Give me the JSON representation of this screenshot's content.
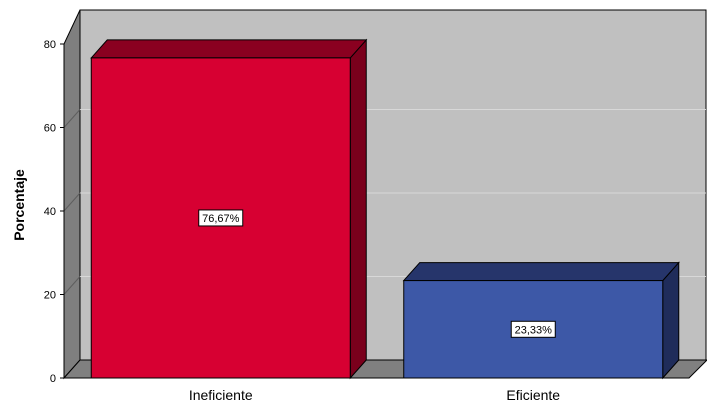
{
  "chart_data": {
    "type": "bar",
    "categories": [
      "Ineficiente",
      "Eficiente"
    ],
    "values": [
      76.67,
      23.33
    ],
    "data_labels": [
      "76,67%",
      "23,33%"
    ],
    "ylabel": "Porcentaje",
    "xlabel": "",
    "ylim": [
      0,
      80
    ],
    "yticks": [
      "0",
      "20",
      "40",
      "60",
      "80"
    ],
    "grid": true,
    "three_d": true,
    "colors": {
      "bar_fronts": [
        "#d70032",
        "#3d58a7"
      ],
      "bar_tops": [
        "#8a0020",
        "#26356b"
      ],
      "bar_sides": [
        "#7a001c",
        "#1f2c5a"
      ],
      "wall": "#c0c0c0",
      "side_wall": "#7f7f7f",
      "floor": "#808080",
      "gridline": "#d8d8d8"
    }
  }
}
